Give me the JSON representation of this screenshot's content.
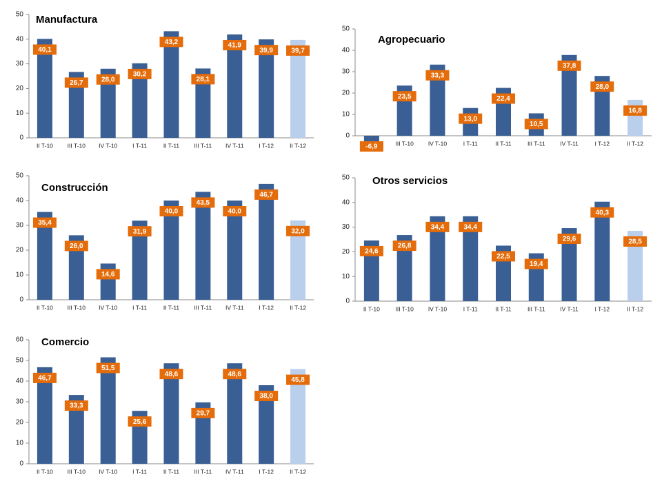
{
  "chart_data": [
    {
      "type": "bar",
      "title": "Manufactura",
      "categories": [
        "II T-10",
        "III T-10",
        "IV T-10",
        "I T-11",
        "II T-11",
        "III T-11",
        "IV T-11",
        "I T-12",
        "II T-12"
      ],
      "values": [
        40.1,
        26.7,
        28.0,
        30.2,
        43.2,
        28.1,
        41.9,
        39.9,
        39.7
      ],
      "value_labels": [
        "40,1",
        "26,7",
        "28,0",
        "30,2",
        "43,2",
        "28,1",
        "41,9",
        "39,9",
        "39,7"
      ],
      "colors": [
        "#3a5f94",
        "#3a5f94",
        "#3a5f94",
        "#3a5f94",
        "#3a5f94",
        "#3a5f94",
        "#3a5f94",
        "#3a5f94",
        "#b9cfec"
      ],
      "ylim": [
        0,
        50
      ],
      "yticks": [
        0,
        10,
        20,
        30,
        40,
        50
      ]
    },
    {
      "type": "bar",
      "title": "Agropecuario",
      "categories": [
        "II T-10",
        "III T-10",
        "IV T-10",
        "I T-11",
        "II T-11",
        "III T-11",
        "IV T-11",
        "I T-12",
        "II T-12"
      ],
      "values": [
        -6.9,
        23.5,
        33.3,
        13.0,
        22.4,
        10.5,
        37.8,
        28.0,
        16.8
      ],
      "value_labels": [
        "-6,9",
        "23,5",
        "33,3",
        "13,0",
        "22,4",
        "10,5",
        "37,8",
        "28,0",
        "16,8"
      ],
      "colors": [
        "#3a5f94",
        "#3a5f94",
        "#3a5f94",
        "#3a5f94",
        "#3a5f94",
        "#3a5f94",
        "#3a5f94",
        "#3a5f94",
        "#b9cfec"
      ],
      "ylim": [
        0,
        50
      ],
      "yticks": [
        0,
        10,
        20,
        30,
        40,
        50
      ]
    },
    {
      "type": "bar",
      "title": "Construcción",
      "categories": [
        "II T-10",
        "III T-10",
        "IV T-10",
        "I T-11",
        "II T-11",
        "III T-11",
        "IV T-11",
        "I T-12",
        "II T-12"
      ],
      "values": [
        35.4,
        26.0,
        14.6,
        31.9,
        40.0,
        43.5,
        40.0,
        46.7,
        32.0
      ],
      "value_labels": [
        "35,4",
        "26,0",
        "14,6",
        "31,9",
        "40,0",
        "43,5",
        "40,0",
        "46,7",
        "32,0"
      ],
      "colors": [
        "#3a5f94",
        "#3a5f94",
        "#3a5f94",
        "#3a5f94",
        "#3a5f94",
        "#3a5f94",
        "#3a5f94",
        "#3a5f94",
        "#b9cfec"
      ],
      "ylim": [
        0,
        50
      ],
      "yticks": [
        0,
        10,
        20,
        30,
        40,
        50
      ]
    },
    {
      "type": "bar",
      "title": "Otros servicios",
      "categories": [
        "II T-10",
        "III T-10",
        "IV T-10",
        "I T-11",
        "II T-11",
        "III T-11",
        "IV T-11",
        "I T-12",
        "II T-12"
      ],
      "values": [
        24.6,
        26.8,
        34.4,
        34.4,
        22.5,
        19.4,
        29.6,
        40.3,
        28.5
      ],
      "value_labels": [
        "24,6",
        "26,8",
        "34,4",
        "34,4",
        "22,5",
        "19,4",
        "29,6",
        "40,3",
        "28,5"
      ],
      "colors": [
        "#3a5f94",
        "#3a5f94",
        "#3a5f94",
        "#3a5f94",
        "#3a5f94",
        "#3a5f94",
        "#3a5f94",
        "#3a5f94",
        "#b9cfec"
      ],
      "ylim": [
        0,
        50
      ],
      "yticks": [
        0,
        10,
        20,
        30,
        40,
        50
      ]
    },
    {
      "type": "bar",
      "title": "Comercio",
      "categories": [
        "II T-10",
        "III T-10",
        "IV T-10",
        "I T-11",
        "II T-11",
        "III T-11",
        "IV T-11",
        "I T-12",
        "II T-12"
      ],
      "values": [
        46.7,
        33.3,
        51.5,
        25.6,
        48.6,
        29.7,
        48.6,
        38.0,
        45.8
      ],
      "value_labels": [
        "46,7",
        "33,3",
        "51,5",
        "25,6",
        "48,6",
        "29,7",
        "48,6",
        "38,0",
        "45,8"
      ],
      "colors": [
        "#3a5f94",
        "#3a5f94",
        "#3a5f94",
        "#3a5f94",
        "#3a5f94",
        "#3a5f94",
        "#3a5f94",
        "#3a5f94",
        "#b9cfec"
      ],
      "ylim": [
        0,
        60
      ],
      "yticks": [
        0,
        10,
        20,
        30,
        40,
        50,
        60
      ]
    }
  ]
}
